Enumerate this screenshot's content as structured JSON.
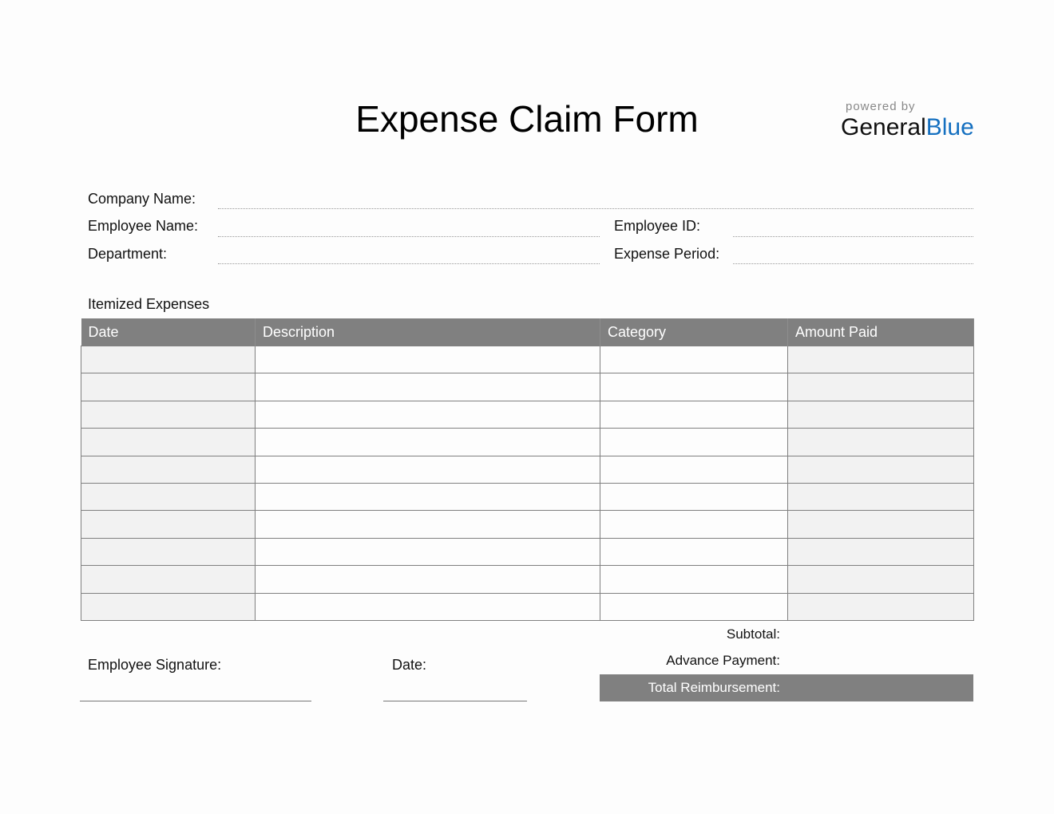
{
  "title": "Expense Claim Form",
  "brand": {
    "powered_by": "powered by",
    "name_part1": "General",
    "name_part2": "Blue",
    "accent": "#1570c0"
  },
  "fields": {
    "company_name": "Company Name:",
    "employee_name": "Employee Name:",
    "department": "Department:",
    "employee_id": "Employee ID:",
    "expense_period": "Expense Period:"
  },
  "section_title": "Itemized Expenses",
  "table": {
    "headers": [
      "Date",
      "Description",
      "Category",
      "Amount Paid"
    ],
    "row_count": 10,
    "header_color": "#808080"
  },
  "summary": {
    "subtotal": "Subtotal:",
    "advance_payment": "Advance Payment:",
    "total": "Total Reimbursement:"
  },
  "signature": {
    "employee_signature": "Employee Signature:",
    "date": "Date:"
  }
}
